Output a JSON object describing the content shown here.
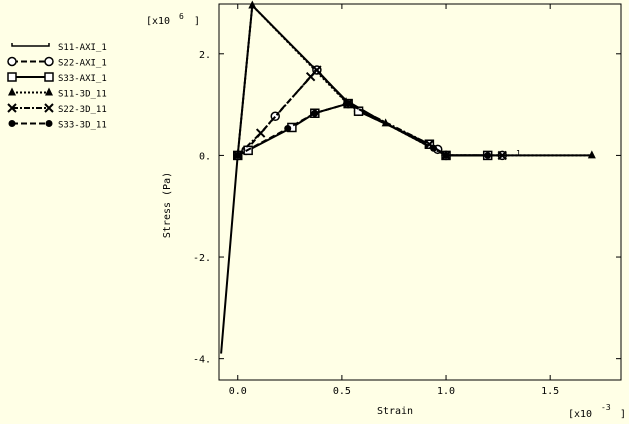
{
  "chart_data": {
    "type": "line",
    "xlabel": "Strain",
    "ylabel": "Stress (Pa)",
    "x_multiplier": "[x10",
    "x_multiplier_exp": "-3",
    "y_multiplier": "[x10",
    "y_multiplier_exp": "6",
    "xlim": [
      -0.09,
      1.84
    ],
    "ylim": [
      -4.42,
      2.98
    ],
    "x_ticks": [
      0.0,
      0.5,
      1.0,
      1.5
    ],
    "x_tick_labels": [
      "0.0",
      "0.5",
      "1.0",
      "1.5"
    ],
    "y_ticks": [
      -4,
      -2,
      0,
      2
    ],
    "y_tick_labels": [
      "-4.",
      "-2.",
      "0.",
      "2."
    ],
    "grid": false,
    "legend_position": "left",
    "series": [
      {
        "name": "S11-AXI_1",
        "marker": "none",
        "dash": "solid",
        "x": [
          -0.08,
          0.0,
          0.07,
          0.52,
          0.71,
          0.9,
          0.95,
          1.0,
          1.7
        ],
        "y": [
          -3.9,
          0.0,
          2.95,
          1.08,
          0.63,
          0.22,
          0.12,
          0.0,
          0.0
        ]
      },
      {
        "name": "S22-AXI_1",
        "marker": "circle",
        "dash": "dash",
        "x": [
          0.0,
          0.04,
          0.18,
          0.38,
          0.53,
          0.58,
          0.92,
          0.96,
          1.0,
          1.27
        ],
        "y": [
          0.0,
          0.1,
          0.77,
          1.68,
          1.02,
          0.87,
          0.22,
          0.12,
          0.0,
          0.0
        ]
      },
      {
        "name": "S33-AXI_1",
        "marker": "square",
        "dash": "solid",
        "x": [
          0.0,
          0.05,
          0.26,
          0.37,
          0.53,
          0.58,
          0.92,
          1.0,
          1.2
        ],
        "y": [
          0.0,
          0.1,
          0.55,
          0.83,
          1.02,
          0.87,
          0.22,
          0.0,
          0.0
        ]
      },
      {
        "name": "S11-3D_11",
        "marker": "triangle",
        "dash": "dot",
        "x": [
          0.0,
          0.07,
          0.52,
          0.71,
          1.0,
          1.7
        ],
        "y": [
          0.0,
          2.95,
          1.05,
          0.63,
          0.0,
          0.0
        ]
      },
      {
        "name": "S22-3D_11",
        "marker": "cross",
        "dash": "dashdot",
        "x": [
          0.0,
          0.11,
          0.35,
          0.38,
          0.53,
          0.92,
          1.0,
          1.27
        ],
        "y": [
          0.0,
          0.44,
          1.55,
          1.68,
          1.02,
          0.22,
          0.0,
          0.0
        ]
      },
      {
        "name": "S33-3D_11",
        "marker": "diamond",
        "dash": "dash",
        "x": [
          0.0,
          0.24,
          0.37,
          0.53,
          0.94,
          1.0,
          1.2
        ],
        "y": [
          0.0,
          0.53,
          0.83,
          1.02,
          0.14,
          0.0,
          0.0
        ]
      }
    ],
    "annotation": "1"
  }
}
